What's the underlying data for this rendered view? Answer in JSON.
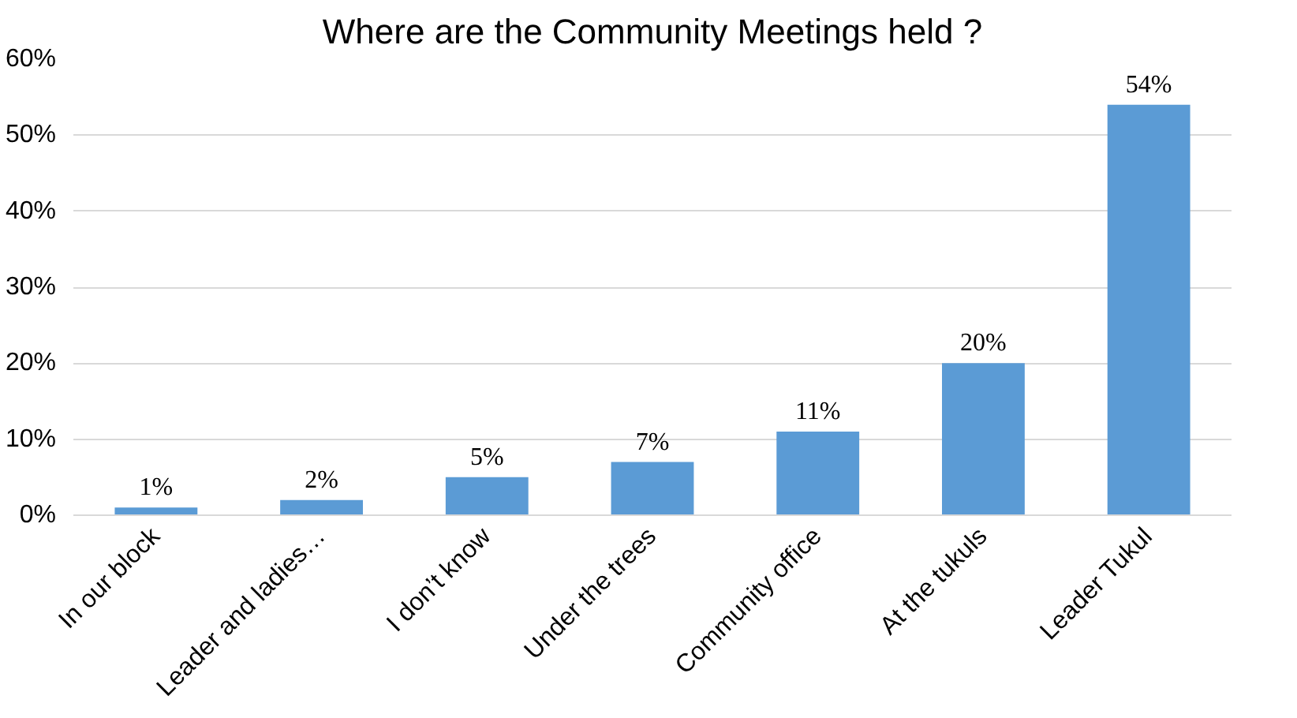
{
  "chart_data": {
    "type": "bar",
    "title": "Where are the Community Meetings held ?",
    "categories": [
      "In our block",
      "Leader and ladies…",
      "I don’t know",
      "Under the trees",
      "Community office",
      "At the tukuls",
      "Leader Tukul"
    ],
    "values": [
      1,
      2,
      5,
      7,
      11,
      20,
      54
    ],
    "value_labels": [
      "1%",
      "2%",
      "5%",
      "7%",
      "11%",
      "20%",
      "54%"
    ],
    "color": "#5b9bd5",
    "ylim": [
      0,
      60
    ],
    "yticks": [
      {
        "value": 0,
        "label": "0%"
      },
      {
        "value": 10,
        "label": "10%"
      },
      {
        "value": 20,
        "label": "20%"
      },
      {
        "value": 30,
        "label": "30%"
      },
      {
        "value": 40,
        "label": "40%"
      },
      {
        "value": 50,
        "label": "50%"
      },
      {
        "value": 60,
        "label": "60%"
      }
    ],
    "grid": "y"
  }
}
